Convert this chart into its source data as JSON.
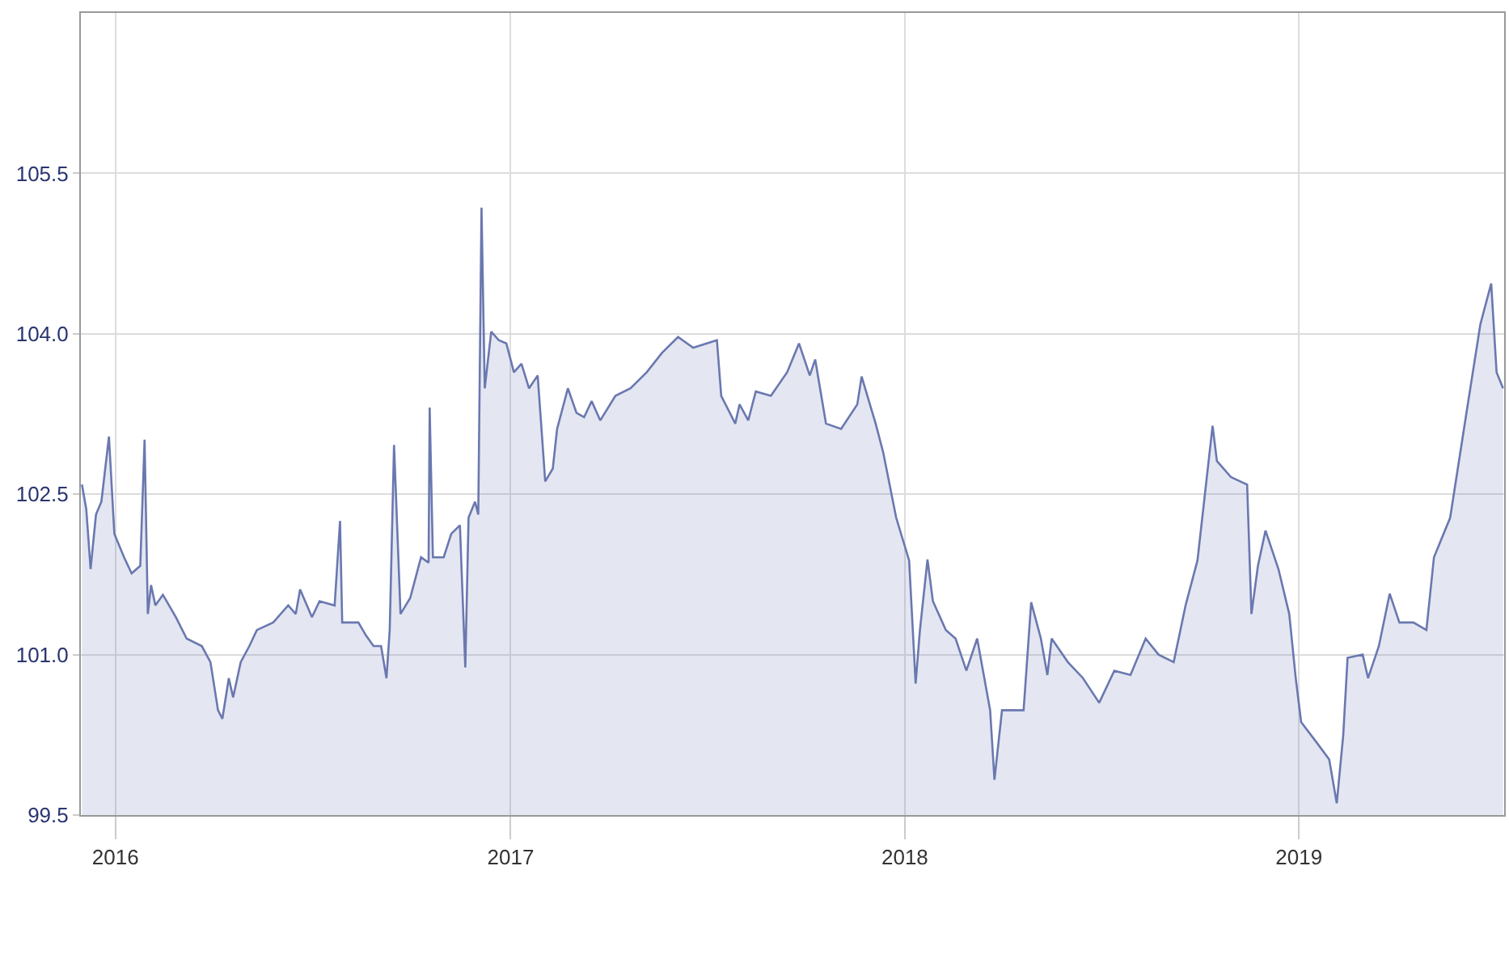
{
  "chart_data": {
    "type": "area",
    "color": "#6a78b0",
    "x": [
      "2015-12-01",
      "2015-12-05",
      "2015-12-09",
      "2015-12-14",
      "2015-12-19",
      "2015-12-26",
      "2015-12-31",
      "2016-01-09",
      "2016-01-16",
      "2016-01-24",
      "2016-01-28",
      "2016-01-31",
      "2016-02-03",
      "2016-02-07",
      "2016-02-14",
      "2016-02-26",
      "2016-03-07",
      "2016-03-21",
      "2016-03-29",
      "2016-04-05",
      "2016-04-09",
      "2016-04-15",
      "2016-04-19",
      "2016-04-26",
      "2016-05-04",
      "2016-05-11",
      "2016-05-26",
      "2016-06-09",
      "2016-06-16",
      "2016-06-20",
      "2016-07-01",
      "2016-07-08",
      "2016-07-22",
      "2016-07-27",
      "2016-07-29",
      "2016-08-13",
      "2016-08-20",
      "2016-08-27",
      "2016-09-03",
      "2016-09-08",
      "2016-09-11",
      "2016-09-15",
      "2016-09-21",
      "2016-09-30",
      "2016-10-10",
      "2016-10-17",
      "2016-10-18",
      "2016-10-21",
      "2016-10-31",
      "2016-11-07",
      "2016-11-15",
      "2016-11-20",
      "2016-11-23",
      "2016-11-29",
      "2016-12-02",
      "2016-12-05",
      "2016-12-08",
      "2016-12-14",
      "2016-12-21",
      "2016-12-28",
      "2017-01-04",
      "2017-01-11",
      "2017-01-18",
      "2017-01-26",
      "2017-01-29",
      "2017-02-02",
      "2017-02-09",
      "2017-02-13",
      "2017-02-23",
      "2017-03-03",
      "2017-03-10",
      "2017-03-17",
      "2017-03-25",
      "2017-04-08",
      "2017-04-22",
      "2017-05-07",
      "2017-05-21",
      "2017-06-05",
      "2017-06-19",
      "2017-07-11",
      "2017-07-15",
      "2017-07-28",
      "2017-08-01",
      "2017-08-09",
      "2017-08-16",
      "2017-08-30",
      "2017-09-14",
      "2017-09-25",
      "2017-10-05",
      "2017-10-10",
      "2017-10-20",
      "2017-11-03",
      "2017-11-18",
      "2017-11-22",
      "2017-12-05",
      "2017-12-12",
      "2017-12-24",
      "2018-01-05",
      "2018-01-11",
      "2018-01-15",
      "2018-01-22",
      "2018-01-27",
      "2018-02-08",
      "2018-02-17",
      "2018-02-27",
      "2018-03-09",
      "2018-03-21",
      "2018-03-25",
      "2018-04-01",
      "2018-04-11",
      "2018-04-21",
      "2018-04-28",
      "2018-05-07",
      "2018-05-13",
      "2018-05-17",
      "2018-06-01",
      "2018-06-15",
      "2018-06-30",
      "2018-07-14",
      "2018-07-29",
      "2018-08-12",
      "2018-08-24",
      "2018-09-07",
      "2018-09-18",
      "2018-09-29",
      "2018-10-13",
      "2018-10-17",
      "2018-10-30",
      "2018-11-14",
      "2018-11-18",
      "2018-11-24",
      "2018-12-01",
      "2018-12-13",
      "2018-12-23",
      "2018-12-29",
      "2019-01-03",
      "2019-01-18",
      "2019-01-29",
      "2019-02-05",
      "2019-02-11",
      "2019-02-15",
      "2019-03-01",
      "2019-03-06",
      "2019-03-16",
      "2019-03-26",
      "2019-04-04",
      "2019-04-17",
      "2019-04-29",
      "2019-05-06",
      "2019-05-21",
      "2019-06-04",
      "2019-06-18",
      "2019-06-28",
      "2019-07-03",
      "2019-07-09"
    ],
    "values": [
      102.59,
      102.36,
      101.8,
      102.31,
      102.43,
      103.04,
      102.13,
      101.91,
      101.76,
      101.83,
      103.01,
      101.38,
      101.65,
      101.46,
      101.56,
      101.35,
      101.15,
      101.08,
      100.93,
      100.48,
      100.4,
      100.78,
      100.6,
      100.93,
      101.08,
      101.23,
      101.3,
      101.46,
      101.38,
      101.61,
      101.35,
      101.5,
      101.46,
      102.25,
      101.3,
      101.3,
      101.18,
      101.08,
      101.08,
      100.78,
      101.23,
      102.96,
      101.38,
      101.53,
      101.91,
      101.86,
      103.31,
      101.91,
      101.91,
      102.13,
      102.21,
      100.88,
      102.28,
      102.43,
      102.31,
      105.18,
      103.49,
      104.02,
      103.94,
      103.91,
      103.64,
      103.72,
      103.49,
      103.61,
      103.19,
      102.62,
      102.74,
      103.11,
      103.49,
      103.26,
      103.22,
      103.37,
      103.19,
      103.42,
      103.49,
      103.64,
      103.82,
      103.97,
      103.87,
      103.94,
      103.42,
      103.16,
      103.34,
      103.19,
      103.46,
      103.42,
      103.64,
      103.91,
      103.61,
      103.76,
      103.16,
      103.11,
      103.34,
      103.6,
      103.16,
      102.89,
      102.28,
      101.88,
      100.73,
      101.23,
      101.89,
      101.5,
      101.23,
      101.15,
      100.85,
      101.15,
      100.48,
      99.83,
      100.48,
      100.48,
      100.48,
      101.49,
      101.15,
      100.81,
      101.15,
      100.93,
      100.78,
      100.55,
      100.85,
      100.81,
      101.15,
      101.0,
      100.93,
      101.46,
      101.88,
      103.14,
      102.81,
      102.66,
      102.59,
      101.38,
      101.83,
      102.16,
      101.8,
      101.38,
      100.78,
      100.37,
      100.17,
      100.02,
      99.61,
      100.25,
      100.97,
      101.0,
      100.78,
      101.08,
      101.57,
      101.3,
      101.3,
      101.23,
      101.91,
      102.28,
      103.19,
      104.09,
      104.47,
      103.64,
      103.49
    ],
    "xlim": [
      "2015-11-30",
      "2019-07-10"
    ],
    "xticks": [
      {
        "value": "2016-01-01",
        "label": "2016"
      },
      {
        "value": "2017-01-01",
        "label": "2017"
      },
      {
        "value": "2018-01-01",
        "label": "2018"
      },
      {
        "value": "2019-01-01",
        "label": "2019"
      }
    ],
    "ylim": [
      99.5,
      107.0
    ],
    "yticks": [
      {
        "value": 99.5,
        "label": "99.5"
      },
      {
        "value": 101.0,
        "label": "101.0"
      },
      {
        "value": 102.5,
        "label": "102.5"
      },
      {
        "value": 104.0,
        "label": "104.0"
      },
      {
        "value": 105.5,
        "label": "105.5"
      }
    ],
    "grid": true
  }
}
